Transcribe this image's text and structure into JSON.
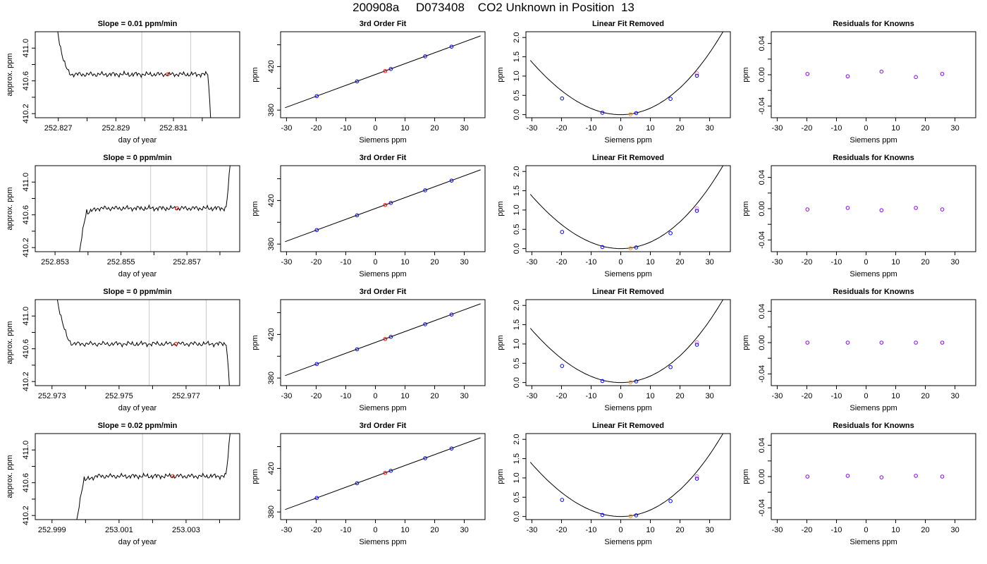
{
  "title": "200908a     D073408    CO2 Unknown in Position  13",
  "colors": {
    "line": "#000000",
    "grid": "#c8c8c8",
    "unknown": "#ff0000",
    "known": "#0000ff",
    "residual": "#8800ff",
    "open_known": "#ff66cc",
    "center_point": "#ff8800"
  },
  "chart_data": [
    {
      "type": "line",
      "title": "Slope =  0.01  ppm/min",
      "xlabel": "day of year",
      "ylabel": "approx. ppm",
      "xlim": [
        252.8262,
        252.8333
      ],
      "ylim": [
        410.15,
        411.2
      ],
      "xticks": [
        252.827,
        252.828,
        252.829,
        252.83,
        252.831,
        252.832
      ],
      "xticklabels": [
        "252.827",
        "",
        "252.829",
        "",
        "252.831",
        ""
      ],
      "yticks": [
        410.2,
        410.4,
        410.6,
        410.8,
        411.0
      ],
      "yticklabels": [
        "410.2",
        "",
        "410.6",
        "",
        "411.0"
      ],
      "vlines": [
        252.8299,
        252.8316
      ],
      "trace": {
        "start": 252.8268,
        "end": 252.8324,
        "plateau": 410.68,
        "profile": "fall-flat-fall"
      },
      "marker": {
        "x": 252.8308,
        "y": 410.68
      }
    },
    {
      "type": "scatter",
      "title": "3rd Order Fit",
      "xlabel": "Siemens ppm",
      "ylabel": "ppm",
      "xlim": [
        -32,
        37
      ],
      "ylim": [
        373,
        452
      ],
      "xticks": [
        -30,
        -20,
        -10,
        0,
        10,
        20,
        30
      ],
      "yticks": [
        380,
        400,
        420,
        440
      ],
      "yticklabels": [
        "380",
        "",
        "420",
        ""
      ],
      "fit_range": [
        -30.5,
        35.5
      ],
      "knowns": [
        [
          -19.8,
          392.9
        ],
        [
          -6.2,
          406.4
        ],
        [
          5.2,
          417.8
        ],
        [
          16.8,
          429.4
        ],
        [
          25.7,
          438.3
        ]
      ],
      "unknown": [
        3.3,
        415.9
      ]
    },
    {
      "type": "scatter",
      "title": "Linear Fit Removed",
      "xlabel": "Siemens ppm",
      "ylabel": "ppm",
      "xlim": [
        -32,
        37
      ],
      "ylim": [
        -0.08,
        2.15
      ],
      "xticks": [
        -30,
        -20,
        -10,
        0,
        10,
        20,
        30
      ],
      "yticks": [
        0.0,
        0.5,
        1.0,
        1.5,
        2.0
      ],
      "yticklabels": [
        "0.0",
        "0.5",
        "1.0",
        "1.5",
        "2.0"
      ],
      "curve": {
        "from": -30.5,
        "to": 35.5,
        "coef": [
          0.00165,
          -5e-05,
          2e-07
        ],
        "center": 0
      },
      "knowns": [
        [
          -19.8,
          0.42
        ],
        [
          -6.2,
          0.05
        ],
        [
          5.2,
          0.04
        ],
        [
          16.8,
          0.41
        ],
        [
          25.7,
          1.01
        ]
      ],
      "open_known": [
        25.7,
        1.07
      ],
      "unknown": [
        3.3,
        0.01
      ]
    },
    {
      "type": "scatter",
      "title": "Residuals for Knowns",
      "xlabel": "Siemens ppm",
      "ylabel": "ppm",
      "xlim": [
        -32,
        37
      ],
      "ylim": [
        -0.055,
        0.055
      ],
      "xticks": [
        -30,
        -20,
        -10,
        0,
        10,
        20,
        30
      ],
      "yticks": [
        -0.04,
        -0.02,
        0.0,
        0.02,
        0.04
      ],
      "yticklabels": [
        "-0.04",
        "",
        "0.00",
        "",
        "0.04"
      ],
      "knowns": [
        [
          -19.8,
          0.001
        ],
        [
          -6.2,
          -0.002
        ],
        [
          5.2,
          0.004
        ],
        [
          16.8,
          -0.003
        ],
        [
          25.7,
          0.001
        ]
      ]
    },
    {
      "type": "line",
      "title": "Slope =  0  ppm/min",
      "xlabel": "day of year",
      "ylabel": "approx. ppm",
      "xlim": [
        252.8524,
        252.8586
      ],
      "ylim": [
        410.15,
        411.2
      ],
      "xticks": [
        252.853,
        252.854,
        252.855,
        252.856,
        252.857,
        252.858
      ],
      "xticklabels": [
        "252.853",
        "",
        "252.855",
        "",
        "252.857",
        ""
      ],
      "yticks": [
        410.2,
        410.4,
        410.6,
        410.8,
        411.0
      ],
      "yticklabels": [
        "410.2",
        "",
        "410.6",
        "",
        "411.0"
      ],
      "vlines": [
        252.8559,
        252.8576
      ],
      "trace": {
        "start": 252.8536,
        "end": 252.8584,
        "plateau": 410.68,
        "profile": "rise-flat-rise"
      },
      "marker": {
        "x": 252.8567,
        "y": 410.68
      }
    },
    {
      "type": "scatter",
      "title": "3rd Order Fit",
      "xlabel": "Siemens ppm",
      "ylabel": "ppm",
      "xlim": [
        -32,
        37
      ],
      "ylim": [
        373,
        452
      ],
      "xticks": [
        -30,
        -20,
        -10,
        0,
        10,
        20,
        30
      ],
      "yticks": [
        380,
        400,
        420,
        440
      ],
      "yticklabels": [
        "380",
        "",
        "420",
        ""
      ],
      "fit_range": [
        -30.5,
        35.5
      ],
      "knowns": [
        [
          -19.8,
          392.9
        ],
        [
          -6.2,
          406.4
        ],
        [
          5.2,
          417.8
        ],
        [
          16.8,
          429.4
        ],
        [
          25.7,
          438.3
        ]
      ],
      "unknown": [
        3.3,
        415.9
      ]
    },
    {
      "type": "scatter",
      "title": "Linear Fit Removed",
      "xlabel": "Siemens ppm",
      "ylabel": "ppm",
      "xlim": [
        -32,
        37
      ],
      "ylim": [
        -0.08,
        2.15
      ],
      "xticks": [
        -30,
        -20,
        -10,
        0,
        10,
        20,
        30
      ],
      "yticks": [
        0.0,
        0.5,
        1.0,
        1.5,
        2.0
      ],
      "yticklabels": [
        "0.0",
        "0.5",
        "1.0",
        "1.5",
        "2.0"
      ],
      "curve": {
        "from": -30.5,
        "to": 35.5,
        "coef": [
          0.00165,
          -5e-05,
          2e-07
        ],
        "center": 0
      },
      "knowns": [
        [
          -19.8,
          0.43
        ],
        [
          -6.2,
          0.04
        ],
        [
          5.2,
          0.03
        ],
        [
          16.8,
          0.4
        ],
        [
          25.7,
          0.98
        ]
      ],
      "open_known": [
        25.7,
        1.04
      ],
      "unknown": [
        3.3,
        0.01
      ]
    },
    {
      "type": "scatter",
      "title": "Residuals for Knowns",
      "xlabel": "Siemens ppm",
      "ylabel": "ppm",
      "xlim": [
        -32,
        37
      ],
      "ylim": [
        -0.055,
        0.055
      ],
      "xticks": [
        -30,
        -20,
        -10,
        0,
        10,
        20,
        30
      ],
      "yticks": [
        -0.04,
        -0.02,
        0.0,
        0.02,
        0.04
      ],
      "yticklabels": [
        "-0.04",
        "",
        "0.00",
        "",
        "0.04"
      ],
      "knowns": [
        [
          -19.8,
          -0.001
        ],
        [
          -6.2,
          0.001
        ],
        [
          5.2,
          -0.002
        ],
        [
          16.8,
          0.001
        ],
        [
          25.7,
          -0.001
        ]
      ]
    },
    {
      "type": "line",
      "title": "Slope =  0  ppm/min",
      "xlabel": "day of year",
      "ylabel": "approx. ppm",
      "xlim": [
        252.9725,
        252.9786
      ],
      "ylim": [
        410.15,
        411.2
      ],
      "xticks": [
        252.973,
        252.974,
        252.975,
        252.976,
        252.977,
        252.978
      ],
      "xticklabels": [
        "252.973",
        "",
        "252.975",
        "",
        "252.977",
        ""
      ],
      "yticks": [
        410.2,
        410.4,
        410.6,
        410.8,
        411.0
      ],
      "yticklabels": [
        "410.2",
        "",
        "410.6",
        "",
        "411.0"
      ],
      "vlines": [
        252.9759,
        252.9776
      ],
      "trace": {
        "start": 252.973,
        "end": 252.9784,
        "plateau": 410.66,
        "profile": "fall-flat-fall"
      },
      "marker": {
        "x": 252.9767,
        "y": 410.66
      }
    },
    {
      "type": "scatter",
      "title": "3rd Order Fit",
      "xlabel": "Siemens ppm",
      "ylabel": "ppm",
      "xlim": [
        -32,
        37
      ],
      "ylim": [
        373,
        452
      ],
      "xticks": [
        -30,
        -20,
        -10,
        0,
        10,
        20,
        30
      ],
      "yticks": [
        380,
        400,
        420,
        440
      ],
      "yticklabels": [
        "380",
        "",
        "420",
        ""
      ],
      "fit_range": [
        -30.5,
        35.5
      ],
      "knowns": [
        [
          -19.8,
          392.9
        ],
        [
          -6.2,
          406.4
        ],
        [
          5.2,
          417.8
        ],
        [
          16.8,
          429.4
        ],
        [
          25.7,
          438.3
        ]
      ],
      "unknown": [
        3.3,
        415.9
      ]
    },
    {
      "type": "scatter",
      "title": "Linear Fit Removed",
      "xlabel": "Siemens ppm",
      "ylabel": "ppm",
      "xlim": [
        -32,
        37
      ],
      "ylim": [
        -0.08,
        2.15
      ],
      "xticks": [
        -30,
        -20,
        -10,
        0,
        10,
        20,
        30
      ],
      "yticks": [
        0.0,
        0.5,
        1.0,
        1.5,
        2.0
      ],
      "yticklabels": [
        "0.0",
        "0.5",
        "1.0",
        "1.5",
        "2.0"
      ],
      "curve": {
        "from": -30.5,
        "to": 35.5,
        "coef": [
          0.00165,
          -5e-05,
          2e-07
        ],
        "center": 0
      },
      "knowns": [
        [
          -19.8,
          0.43
        ],
        [
          -6.2,
          0.04
        ],
        [
          5.2,
          0.03
        ],
        [
          16.8,
          0.4
        ],
        [
          25.7,
          0.98
        ]
      ],
      "open_known": [
        25.7,
        1.04
      ],
      "unknown": [
        3.3,
        0.01
      ]
    },
    {
      "type": "scatter",
      "title": "Residuals for Knowns",
      "xlabel": "Siemens ppm",
      "ylabel": "ppm",
      "xlim": [
        -32,
        37
      ],
      "ylim": [
        -0.055,
        0.055
      ],
      "xticks": [
        -30,
        -20,
        -10,
        0,
        10,
        20,
        30
      ],
      "yticks": [
        -0.04,
        -0.02,
        0.0,
        0.02,
        0.04
      ],
      "yticklabels": [
        "-0.04",
        "",
        "0.00",
        "",
        "0.04"
      ],
      "knowns": [
        [
          -19.8,
          0.0
        ],
        [
          -6.2,
          0.0
        ],
        [
          5.2,
          0.0
        ],
        [
          16.8,
          0.0
        ],
        [
          25.7,
          0.0
        ]
      ]
    },
    {
      "type": "line",
      "title": "Slope =  0.02  ppm/min",
      "xlabel": "day of year",
      "ylabel": "approx. ppm",
      "xlim": [
        252.9985,
        253.0046
      ],
      "ylim": [
        410.15,
        411.2
      ],
      "xticks": [
        252.999,
        253.0,
        253.001,
        253.002,
        253.003,
        253.004
      ],
      "xticklabels": [
        "252.999",
        "",
        "253.001",
        "",
        "253.003",
        ""
      ],
      "yticks": [
        410.2,
        410.4,
        410.6,
        410.8,
        411.0
      ],
      "yticklabels": [
        "410.2",
        "",
        "410.6",
        "",
        "411.0"
      ],
      "vlines": [
        253.0017,
        253.0035
      ],
      "trace": {
        "start": 252.9996,
        "end": 253.0044,
        "plateau": 410.68,
        "profile": "rise-flat-rise"
      },
      "marker": {
        "x": 253.0026,
        "y": 410.68
      }
    },
    {
      "type": "scatter",
      "title": "3rd Order Fit",
      "xlabel": "Siemens ppm",
      "ylabel": "ppm",
      "xlim": [
        -32,
        37
      ],
      "ylim": [
        373,
        452
      ],
      "xticks": [
        -30,
        -20,
        -10,
        0,
        10,
        20,
        30
      ],
      "yticks": [
        380,
        400,
        420,
        440
      ],
      "yticklabels": [
        "380",
        "",
        "420",
        ""
      ],
      "fit_range": [
        -30.5,
        35.5
      ],
      "knowns": [
        [
          -19.8,
          392.9
        ],
        [
          -6.2,
          406.4
        ],
        [
          5.2,
          417.8
        ],
        [
          16.8,
          429.4
        ],
        [
          25.7,
          438.3
        ]
      ],
      "unknown": [
        3.3,
        415.9
      ]
    },
    {
      "type": "scatter",
      "title": "Linear Fit Removed",
      "xlabel": "Siemens ppm",
      "ylabel": "ppm",
      "xlim": [
        -32,
        37
      ],
      "ylim": [
        -0.08,
        2.15
      ],
      "xticks": [
        -30,
        -20,
        -10,
        0,
        10,
        20,
        30
      ],
      "yticks": [
        0.0,
        0.5,
        1.0,
        1.5,
        2.0
      ],
      "yticklabels": [
        "0.0",
        "0.5",
        "1.0",
        "1.5",
        "2.0"
      ],
      "curve": {
        "from": -30.5,
        "to": 35.5,
        "coef": [
          0.00165,
          -5e-05,
          2e-07
        ],
        "center": 0
      },
      "knowns": [
        [
          -19.8,
          0.43
        ],
        [
          -6.2,
          0.04
        ],
        [
          5.2,
          0.03
        ],
        [
          16.8,
          0.4
        ],
        [
          25.7,
          0.98
        ]
      ],
      "open_known": [
        25.7,
        1.04
      ],
      "unknown": [
        3.3,
        0.01
      ]
    },
    {
      "type": "scatter",
      "title": "Residuals for Knowns",
      "xlabel": "Siemens ppm",
      "ylabel": "ppm",
      "xlim": [
        -32,
        37
      ],
      "ylim": [
        -0.055,
        0.055
      ],
      "xticks": [
        -30,
        -20,
        -10,
        0,
        10,
        20,
        30
      ],
      "yticks": [
        -0.04,
        -0.02,
        0.0,
        0.02,
        0.04
      ],
      "yticklabels": [
        "-0.04",
        "",
        "0.00",
        "",
        "0.04"
      ],
      "knowns": [
        [
          -19.8,
          0.0
        ],
        [
          -6.2,
          0.001
        ],
        [
          5.2,
          -0.001
        ],
        [
          16.8,
          0.001
        ],
        [
          25.7,
          0.0
        ]
      ]
    }
  ]
}
